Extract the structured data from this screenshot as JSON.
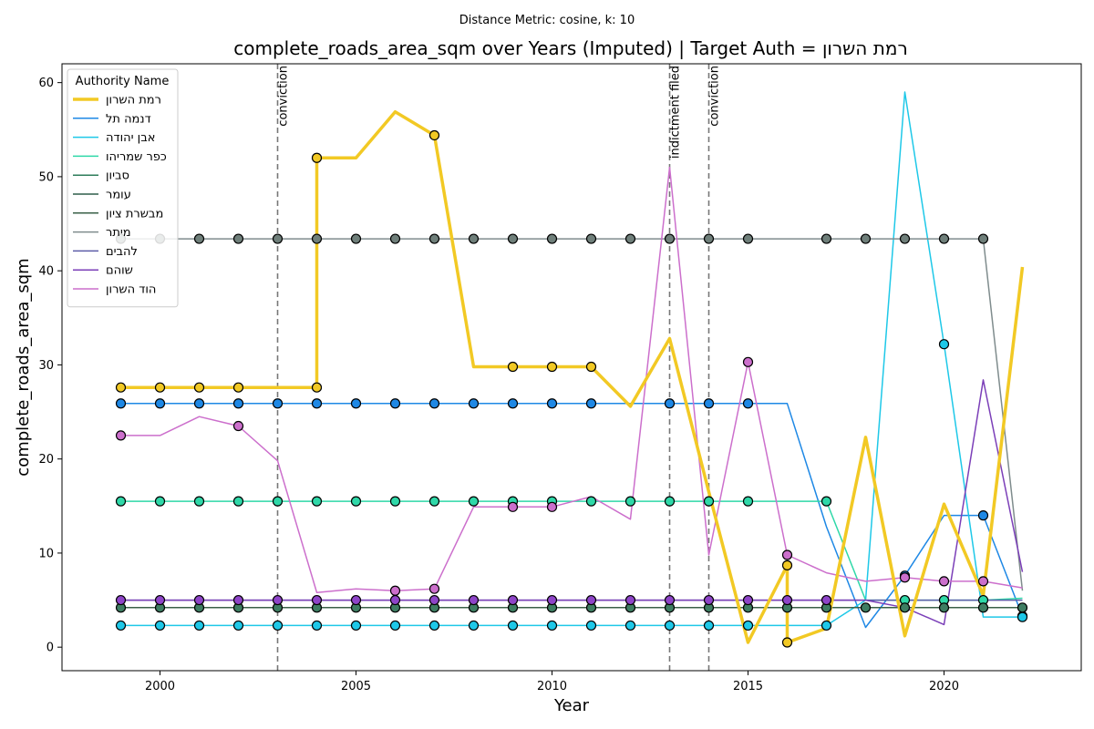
{
  "chart_data": {
    "type": "line",
    "subtitle": "Distance Metric: cosine, k: 10",
    "title": "complete_roads_area_sqm over Years (Imputed) | Target Auth = רמת השרון",
    "xlabel": "Year",
    "ylabel": "complete_roads_area_sqm",
    "xlim": [
      1997.5,
      2023.5
    ],
    "ylim": [
      -2.5,
      62
    ],
    "xticks": [
      2000,
      2005,
      2010,
      2015,
      2020
    ],
    "yticks": [
      0,
      10,
      20,
      30,
      40,
      50,
      60
    ],
    "grid": false,
    "legend": {
      "title": "Authority Name",
      "placement": "top-left"
    },
    "annotations": [
      {
        "x": 2003,
        "label": "conviction"
      },
      {
        "x": 2013,
        "label": "indictment filed"
      },
      {
        "x": 2014,
        "label": "conviction"
      }
    ],
    "series": [
      {
        "name": "רמת השרון",
        "color": "#f2c924",
        "width": 3.5,
        "step": true,
        "markerColor": "#f2c924",
        "points": [
          [
            1999,
            27.6
          ],
          [
            2000,
            27.6
          ],
          [
            2001,
            27.6
          ],
          [
            2002,
            27.6
          ],
          [
            2003,
            27.6
          ],
          [
            2004,
            27.6
          ],
          [
            2004,
            52.0
          ],
          [
            2005,
            52.0
          ],
          [
            2006,
            56.9
          ],
          [
            2007,
            54.4
          ],
          [
            2008,
            29.8
          ],
          [
            2009,
            29.8
          ],
          [
            2010,
            29.8
          ],
          [
            2011,
            29.8
          ],
          [
            2012,
            25.6
          ],
          [
            2013,
            32.8
          ],
          [
            2014,
            16.5
          ],
          [
            2015,
            0.5
          ],
          [
            2016,
            8.7
          ],
          [
            2016,
            0.5
          ],
          [
            2017,
            2.0
          ],
          [
            2018,
            22.3
          ],
          [
            2019,
            1.2
          ],
          [
            2020,
            15.2
          ],
          [
            2021,
            5.5
          ],
          [
            2022,
            40.4
          ]
        ],
        "markers": [
          1999,
          2000,
          2001,
          2002,
          2004,
          2004.001,
          2007,
          2009,
          2010,
          2011,
          2016,
          2016.001
        ]
      },
      {
        "name": "דנמה תל",
        "color": "#1e88e5",
        "width": 1.5,
        "markerColor": "#1e88e5",
        "points": [
          [
            1999,
            25.9
          ],
          [
            2000,
            25.9
          ],
          [
            2001,
            25.9
          ],
          [
            2002,
            25.9
          ],
          [
            2003,
            25.9
          ],
          [
            2004,
            25.9
          ],
          [
            2005,
            25.9
          ],
          [
            2006,
            25.9
          ],
          [
            2007,
            25.9
          ],
          [
            2008,
            25.9
          ],
          [
            2009,
            25.9
          ],
          [
            2010,
            25.9
          ],
          [
            2011,
            25.9
          ],
          [
            2012,
            25.9
          ],
          [
            2013,
            25.9
          ],
          [
            2014,
            25.9
          ],
          [
            2015,
            25.9
          ],
          [
            2016,
            25.9
          ],
          [
            2017,
            12.8
          ],
          [
            2018,
            2.1
          ],
          [
            2019,
            7.6
          ],
          [
            2020,
            14.0
          ],
          [
            2021,
            14.0
          ],
          [
            2022,
            3.3
          ]
        ],
        "markers": [
          1999,
          2000,
          2001,
          2002,
          2003,
          2004,
          2005,
          2006,
          2007,
          2008,
          2009,
          2010,
          2011,
          2013,
          2014,
          2015,
          2019,
          2021,
          2022
        ]
      },
      {
        "name": "אבן יהודה",
        "color": "#1ec8e8",
        "width": 1.5,
        "markerColor": "#1ec8e8",
        "points": [
          [
            1999,
            2.3
          ],
          [
            2000,
            2.3
          ],
          [
            2001,
            2.3
          ],
          [
            2002,
            2.3
          ],
          [
            2003,
            2.3
          ],
          [
            2004,
            2.3
          ],
          [
            2005,
            2.3
          ],
          [
            2006,
            2.3
          ],
          [
            2007,
            2.3
          ],
          [
            2008,
            2.3
          ],
          [
            2009,
            2.3
          ],
          [
            2010,
            2.3
          ],
          [
            2011,
            2.3
          ],
          [
            2012,
            2.3
          ],
          [
            2013,
            2.3
          ],
          [
            2014,
            2.3
          ],
          [
            2015,
            2.3
          ],
          [
            2016,
            2.3
          ],
          [
            2017,
            2.3
          ],
          [
            2018,
            5.0
          ],
          [
            2019,
            59.0
          ],
          [
            2020,
            32.2
          ],
          [
            2021,
            3.2
          ],
          [
            2022,
            3.2
          ]
        ],
        "markers": [
          1999,
          2000,
          2001,
          2002,
          2003,
          2004,
          2005,
          2006,
          2007,
          2008,
          2009,
          2010,
          2011,
          2012,
          2013,
          2014,
          2015,
          2017,
          2020,
          2022
        ]
      },
      {
        "name": "כפר שמריהו",
        "color": "#2fd8a8",
        "width": 1.5,
        "markerColor": "#2fd8a8",
        "points": [
          [
            1999,
            15.5
          ],
          [
            2000,
            15.5
          ],
          [
            2001,
            15.5
          ],
          [
            2002,
            15.5
          ],
          [
            2003,
            15.5
          ],
          [
            2004,
            15.5
          ],
          [
            2005,
            15.5
          ],
          [
            2006,
            15.5
          ],
          [
            2007,
            15.5
          ],
          [
            2008,
            15.5
          ],
          [
            2009,
            15.5
          ],
          [
            2010,
            15.5
          ],
          [
            2011,
            15.5
          ],
          [
            2012,
            15.5
          ],
          [
            2013,
            15.5
          ],
          [
            2014,
            15.5
          ],
          [
            2015,
            15.5
          ],
          [
            2016,
            15.5
          ],
          [
            2017,
            15.5
          ],
          [
            2018,
            5.0
          ],
          [
            2019,
            5.0
          ],
          [
            2020,
            5.0
          ],
          [
            2021,
            5.0
          ],
          [
            2022,
            5.2
          ]
        ],
        "markers": [
          1999,
          2000,
          2001,
          2002,
          2003,
          2004,
          2005,
          2006,
          2007,
          2008,
          2009,
          2010,
          2011,
          2012,
          2013,
          2014,
          2015,
          2017,
          2019,
          2020,
          2021
        ]
      },
      {
        "name": "סביון",
        "color": "#2e7d5a",
        "width": 1.5,
        "markerColor": "#3e7d62",
        "points": [
          [
            1999,
            4.2
          ],
          [
            2000,
            4.2
          ],
          [
            2001,
            4.2
          ],
          [
            2002,
            4.2
          ],
          [
            2003,
            4.2
          ],
          [
            2004,
            4.2
          ],
          [
            2005,
            4.2
          ],
          [
            2006,
            4.2
          ],
          [
            2007,
            4.2
          ],
          [
            2008,
            4.2
          ],
          [
            2009,
            4.2
          ],
          [
            2010,
            4.2
          ],
          [
            2011,
            4.2
          ],
          [
            2012,
            4.2
          ],
          [
            2013,
            4.2
          ],
          [
            2014,
            4.2
          ],
          [
            2015,
            4.2
          ],
          [
            2016,
            4.2
          ],
          [
            2017,
            4.2
          ],
          [
            2018,
            4.2
          ],
          [
            2019,
            4.2
          ],
          [
            2020,
            4.2
          ],
          [
            2021,
            4.2
          ],
          [
            2022,
            4.2
          ]
        ],
        "markers": [
          1999,
          2000,
          2001,
          2002,
          2003,
          2004,
          2005,
          2006,
          2007,
          2008,
          2009,
          2010,
          2011,
          2012,
          2013,
          2014,
          2015,
          2016,
          2017,
          2018,
          2019,
          2020,
          2021,
          2022
        ]
      },
      {
        "name": "עומר",
        "color": "#2e5e4a",
        "width": 1.5,
        "markerColor": "#44665a",
        "points": [
          [
            1999,
            4.2
          ],
          [
            2022,
            4.2
          ]
        ],
        "markers": []
      },
      {
        "name": "מבשרת ציון",
        "color": "#3a6048",
        "width": 1.5,
        "markerColor": "#44665a",
        "points": [
          [
            1999,
            4.2
          ],
          [
            2022,
            4.2
          ]
        ],
        "markers": []
      },
      {
        "name": "מיתר",
        "color": "#7f8c8d",
        "width": 1.5,
        "markerColor": "#6f7f7a",
        "points": [
          [
            1999,
            43.4
          ],
          [
            2000,
            43.4
          ],
          [
            2001,
            43.4
          ],
          [
            2002,
            43.4
          ],
          [
            2003,
            43.4
          ],
          [
            2004,
            43.4
          ],
          [
            2005,
            43.4
          ],
          [
            2006,
            43.4
          ],
          [
            2007,
            43.4
          ],
          [
            2008,
            43.4
          ],
          [
            2009,
            43.4
          ],
          [
            2010,
            43.4
          ],
          [
            2011,
            43.4
          ],
          [
            2012,
            43.4
          ],
          [
            2013,
            43.4
          ],
          [
            2014,
            43.4
          ],
          [
            2015,
            43.4
          ],
          [
            2016,
            43.4
          ],
          [
            2017,
            43.4
          ],
          [
            2018,
            43.4
          ],
          [
            2019,
            43.4
          ],
          [
            2020,
            43.4
          ],
          [
            2021,
            43.4
          ],
          [
            2022,
            6.0
          ]
        ],
        "markers": [
          1999,
          2000,
          2001,
          2002,
          2003,
          2004,
          2005,
          2006,
          2007,
          2008,
          2009,
          2010,
          2011,
          2012,
          2013,
          2014,
          2015,
          2017,
          2018,
          2019,
          2020,
          2021
        ]
      },
      {
        "name": "להבים",
        "color": "#5c5ca8",
        "width": 1.5,
        "markerColor": "#6a5fb0",
        "points": [
          [
            1999,
            5.0
          ],
          [
            2022,
            5.0
          ]
        ],
        "markers": []
      },
      {
        "name": "שוהם",
        "color": "#7b3fb8",
        "width": 1.5,
        "markerColor": "#8e44c8",
        "points": [
          [
            1999,
            5.0
          ],
          [
            2000,
            5.0
          ],
          [
            2001,
            5.0
          ],
          [
            2002,
            5.0
          ],
          [
            2003,
            5.0
          ],
          [
            2004,
            5.0
          ],
          [
            2005,
            5.0
          ],
          [
            2006,
            5.0
          ],
          [
            2007,
            5.0
          ],
          [
            2008,
            5.0
          ],
          [
            2009,
            5.0
          ],
          [
            2010,
            5.0
          ],
          [
            2011,
            5.0
          ],
          [
            2012,
            5.0
          ],
          [
            2013,
            5.0
          ],
          [
            2014,
            5.0
          ],
          [
            2015,
            5.0
          ],
          [
            2016,
            5.0
          ],
          [
            2017,
            5.0
          ],
          [
            2018,
            5.0
          ],
          [
            2019,
            4.2
          ],
          [
            2020,
            2.4
          ],
          [
            2021,
            28.4
          ],
          [
            2022,
            8.0
          ]
        ],
        "markers": [
          1999,
          2000,
          2001,
          2002,
          2003,
          2004,
          2005,
          2006,
          2007,
          2008,
          2009,
          2010,
          2011,
          2012,
          2013,
          2014,
          2015,
          2016,
          2017
        ]
      },
      {
        "name": "הוד השרון",
        "color": "#cc6fcc",
        "width": 1.5,
        "markerColor": "#cc6fcc",
        "points": [
          [
            1999,
            22.5
          ],
          [
            2000,
            22.5
          ],
          [
            2001,
            24.5
          ],
          [
            2002,
            23.5
          ],
          [
            2003,
            19.8
          ],
          [
            2004,
            5.8
          ],
          [
            2005,
            6.2
          ],
          [
            2006,
            6.0
          ],
          [
            2007,
            6.2
          ],
          [
            2008,
            14.9
          ],
          [
            2009,
            14.9
          ],
          [
            2010,
            14.9
          ],
          [
            2011,
            16.0
          ],
          [
            2012,
            13.6
          ],
          [
            2013,
            51.0
          ],
          [
            2014,
            9.8
          ],
          [
            2015,
            30.3
          ],
          [
            2016,
            9.8
          ],
          [
            2017,
            7.9
          ],
          [
            2018,
            7.0
          ],
          [
            2019,
            7.4
          ],
          [
            2020,
            7.0
          ],
          [
            2021,
            7.0
          ],
          [
            2022,
            6.3
          ]
        ],
        "markers": [
          1999,
          2002,
          2006,
          2007,
          2009,
          2010,
          2015,
          2016,
          2019,
          2020,
          2021
        ]
      }
    ]
  }
}
